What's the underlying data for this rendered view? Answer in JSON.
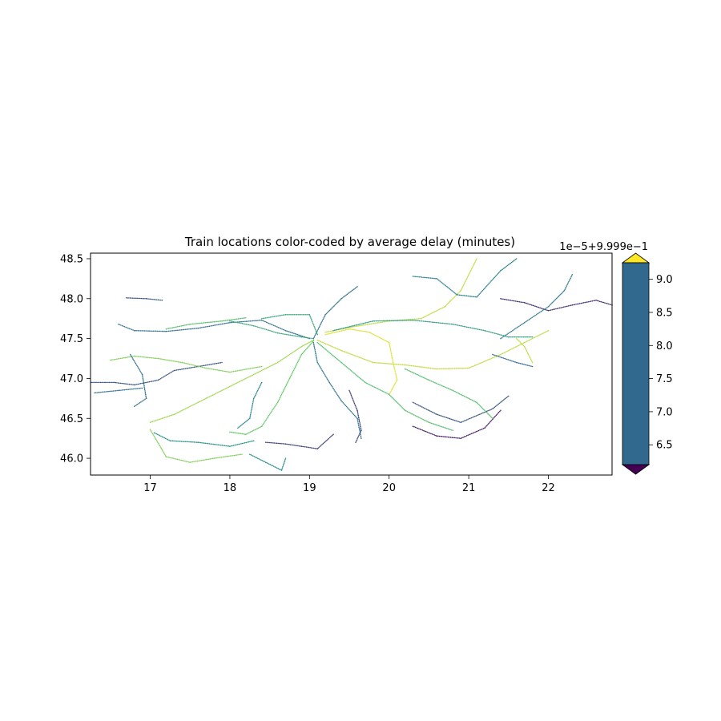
{
  "chart_data": {
    "type": "scatter",
    "title": "Train locations color-coded by average delay (minutes)",
    "xlabel": "",
    "ylabel": "",
    "xlim": [
      16.25,
      22.8
    ],
    "ylim": [
      45.79,
      48.57
    ],
    "xticks": [
      17,
      18,
      19,
      20,
      21,
      22
    ],
    "yticks": [
      46.0,
      46.5,
      47.0,
      47.5,
      48.0,
      48.5
    ],
    "ytick_labels": [
      "46.0",
      "46.5",
      "47.0",
      "47.5",
      "48.0",
      "48.5"
    ],
    "grid": false,
    "colormap": "viridis",
    "colors": {
      "low": "#440154",
      "mid_dark": "#31688e",
      "mid": "#21918c",
      "mid_light": "#5ec962",
      "high": "#fde725",
      "colorbar_fill": "#31688e"
    },
    "colorbar": {
      "offset_label": "1e−5+9.999e−1",
      "ticks": [
        6.5,
        7.0,
        7.5,
        8.0,
        8.5,
        9.0
      ],
      "tick_labels": [
        "6.5",
        "7.0",
        "7.5",
        "8.0",
        "8.5",
        "9.0"
      ],
      "range": [
        6.2,
        9.25
      ],
      "extend": "both"
    },
    "series": [
      {
        "level": 0.2,
        "points": [
          [
            16.25,
            46.95
          ],
          [
            16.55,
            46.95
          ],
          [
            16.8,
            46.92
          ],
          [
            17.1,
            46.98
          ],
          [
            17.3,
            47.1
          ],
          [
            17.6,
            47.15
          ],
          [
            17.9,
            47.2
          ]
        ]
      },
      {
        "level": 0.3,
        "points": [
          [
            16.3,
            46.82
          ],
          [
            16.6,
            46.85
          ],
          [
            16.9,
            46.88
          ]
        ]
      },
      {
        "level": 0.8,
        "points": [
          [
            16.5,
            47.23
          ],
          [
            16.8,
            47.28
          ],
          [
            17.1,
            47.25
          ],
          [
            17.4,
            47.2
          ],
          [
            17.7,
            47.13
          ],
          [
            18.0,
            47.08
          ],
          [
            18.4,
            47.15
          ]
        ]
      },
      {
        "level": 0.3,
        "points": [
          [
            16.6,
            47.68
          ],
          [
            16.8,
            47.6
          ],
          [
            17.2,
            47.59
          ],
          [
            17.6,
            47.63
          ],
          [
            18.0,
            47.7
          ],
          [
            18.4,
            47.73
          ],
          [
            18.7,
            47.6
          ],
          [
            19.0,
            47.5
          ]
        ]
      },
      {
        "level": 0.7,
        "points": [
          [
            17.2,
            47.62
          ],
          [
            17.5,
            47.68
          ],
          [
            17.9,
            47.72
          ],
          [
            18.2,
            47.76
          ]
        ]
      },
      {
        "level": 0.6,
        "points": [
          [
            18.0,
            47.72
          ],
          [
            18.3,
            47.66
          ],
          [
            18.6,
            47.57
          ],
          [
            18.9,
            47.52
          ],
          [
            19.05,
            47.5
          ]
        ]
      },
      {
        "level": 0.2,
        "points": [
          [
            16.7,
            48.01
          ],
          [
            16.95,
            48.0
          ],
          [
            17.15,
            47.98
          ]
        ]
      },
      {
        "level": 0.5,
        "points": [
          [
            17.05,
            46.32
          ],
          [
            17.25,
            46.22
          ],
          [
            17.6,
            46.2
          ],
          [
            18.0,
            46.15
          ],
          [
            18.3,
            46.22
          ]
        ]
      },
      {
        "level": 0.8,
        "points": [
          [
            17.0,
            46.36
          ],
          [
            17.2,
            46.02
          ],
          [
            17.5,
            45.95
          ],
          [
            17.8,
            46.0
          ],
          [
            18.15,
            46.05
          ]
        ]
      },
      {
        "level": 0.85,
        "points": [
          [
            17.0,
            46.45
          ],
          [
            17.3,
            46.55
          ],
          [
            17.7,
            46.75
          ],
          [
            18.0,
            46.9
          ],
          [
            18.3,
            47.05
          ],
          [
            18.6,
            47.2
          ],
          [
            18.9,
            47.4
          ],
          [
            19.05,
            47.48
          ]
        ]
      },
      {
        "level": 0.75,
        "points": [
          [
            18.0,
            46.33
          ],
          [
            18.2,
            46.3
          ],
          [
            18.4,
            46.4
          ],
          [
            18.6,
            46.7
          ],
          [
            18.75,
            47.0
          ],
          [
            18.9,
            47.3
          ],
          [
            19.05,
            47.47
          ]
        ]
      },
      {
        "level": 0.15,
        "points": [
          [
            18.45,
            46.2
          ],
          [
            18.7,
            46.18
          ],
          [
            18.9,
            46.15
          ],
          [
            19.1,
            46.12
          ],
          [
            19.3,
            46.3
          ]
        ]
      },
      {
        "level": 0.35,
        "points": [
          [
            19.05,
            47.45
          ],
          [
            19.1,
            47.2
          ],
          [
            19.25,
            46.95
          ],
          [
            19.4,
            46.72
          ],
          [
            19.6,
            46.5
          ],
          [
            19.65,
            46.25
          ]
        ]
      },
      {
        "level": 0.9,
        "points": [
          [
            19.1,
            47.48
          ],
          [
            19.4,
            47.35
          ],
          [
            19.8,
            47.2
          ],
          [
            20.2,
            47.17
          ],
          [
            20.6,
            47.12
          ],
          [
            21.0,
            47.13
          ],
          [
            21.4,
            47.3
          ],
          [
            21.7,
            47.45
          ],
          [
            22.0,
            47.6
          ]
        ]
      },
      {
        "level": 0.95,
        "points": [
          [
            19.2,
            47.55
          ],
          [
            19.5,
            47.62
          ],
          [
            19.75,
            47.58
          ],
          [
            20.0,
            47.45
          ],
          [
            20.05,
            47.2
          ],
          [
            20.1,
            46.98
          ],
          [
            20.0,
            46.8
          ]
        ]
      },
      {
        "level": 0.9,
        "points": [
          [
            19.2,
            47.58
          ],
          [
            19.5,
            47.64
          ],
          [
            20.0,
            47.72
          ],
          [
            20.4,
            47.75
          ],
          [
            20.7,
            47.9
          ],
          [
            20.9,
            48.1
          ],
          [
            21.1,
            48.5
          ]
        ]
      },
      {
        "level": 0.55,
        "points": [
          [
            19.3,
            47.6
          ],
          [
            19.8,
            47.72
          ],
          [
            20.3,
            47.73
          ],
          [
            20.8,
            47.68
          ],
          [
            21.2,
            47.6
          ],
          [
            21.5,
            47.52
          ],
          [
            21.8,
            47.52
          ]
        ]
      },
      {
        "level": 0.3,
        "points": [
          [
            19.05,
            47.5
          ],
          [
            19.2,
            47.8
          ],
          [
            19.4,
            48.0
          ],
          [
            19.6,
            48.15
          ]
        ]
      },
      {
        "level": 0.7,
        "points": [
          [
            19.1,
            47.45
          ],
          [
            19.4,
            47.2
          ],
          [
            19.7,
            46.95
          ],
          [
            20.0,
            46.8
          ],
          [
            20.2,
            46.6
          ],
          [
            20.5,
            46.45
          ],
          [
            20.8,
            46.35
          ]
        ]
      },
      {
        "level": 0.2,
        "points": [
          [
            20.3,
            46.7
          ],
          [
            20.6,
            46.55
          ],
          [
            20.9,
            46.45
          ],
          [
            21.3,
            46.62
          ],
          [
            21.5,
            46.78
          ]
        ]
      },
      {
        "level": 0.05,
        "points": [
          [
            20.3,
            46.4
          ],
          [
            20.6,
            46.28
          ],
          [
            20.9,
            46.25
          ],
          [
            21.2,
            46.38
          ],
          [
            21.4,
            46.6
          ]
        ]
      },
      {
        "level": 0.7,
        "points": [
          [
            20.2,
            47.12
          ],
          [
            20.5,
            46.98
          ],
          [
            20.8,
            46.85
          ],
          [
            21.1,
            46.7
          ],
          [
            21.3,
            46.5
          ]
        ]
      },
      {
        "level": 0.1,
        "points": [
          [
            21.4,
            48.0
          ],
          [
            21.7,
            47.95
          ],
          [
            22.0,
            47.85
          ],
          [
            22.3,
            47.92
          ],
          [
            22.6,
            47.98
          ],
          [
            22.8,
            47.92
          ]
        ]
      },
      {
        "level": 0.35,
        "points": [
          [
            21.4,
            47.5
          ],
          [
            21.7,
            47.7
          ],
          [
            22.0,
            47.9
          ],
          [
            22.2,
            48.1
          ],
          [
            22.3,
            48.3
          ]
        ]
      },
      {
        "level": 0.4,
        "points": [
          [
            20.3,
            48.28
          ],
          [
            20.6,
            48.25
          ],
          [
            20.85,
            48.05
          ],
          [
            21.1,
            48.02
          ],
          [
            21.4,
            48.35
          ],
          [
            21.6,
            48.5
          ]
        ]
      },
      {
        "level": 0.9,
        "points": [
          [
            21.6,
            47.5
          ],
          [
            21.7,
            47.4
          ],
          [
            21.8,
            47.2
          ]
        ]
      },
      {
        "level": 0.25,
        "points": [
          [
            21.3,
            47.3
          ],
          [
            21.6,
            47.2
          ],
          [
            21.8,
            47.15
          ]
        ]
      },
      {
        "level": 0.15,
        "points": [
          [
            19.5,
            46.85
          ],
          [
            19.6,
            46.6
          ],
          [
            19.65,
            46.35
          ],
          [
            19.58,
            46.2
          ]
        ]
      },
      {
        "level": 0.3,
        "points": [
          [
            16.75,
            47.3
          ],
          [
            16.9,
            47.05
          ],
          [
            16.95,
            46.75
          ],
          [
            16.8,
            46.65
          ]
        ]
      },
      {
        "level": 0.6,
        "points": [
          [
            18.4,
            47.75
          ],
          [
            18.7,
            47.8
          ],
          [
            19.0,
            47.8
          ],
          [
            19.1,
            47.55
          ]
        ]
      },
      {
        "level": 0.45,
        "points": [
          [
            18.1,
            46.38
          ],
          [
            18.25,
            46.5
          ],
          [
            18.3,
            46.75
          ],
          [
            18.4,
            46.95
          ]
        ]
      },
      {
        "level": 0.45,
        "points": [
          [
            18.25,
            46.05
          ],
          [
            18.45,
            45.95
          ],
          [
            18.65,
            45.85
          ],
          [
            18.7,
            46.0
          ]
        ]
      }
    ]
  }
}
